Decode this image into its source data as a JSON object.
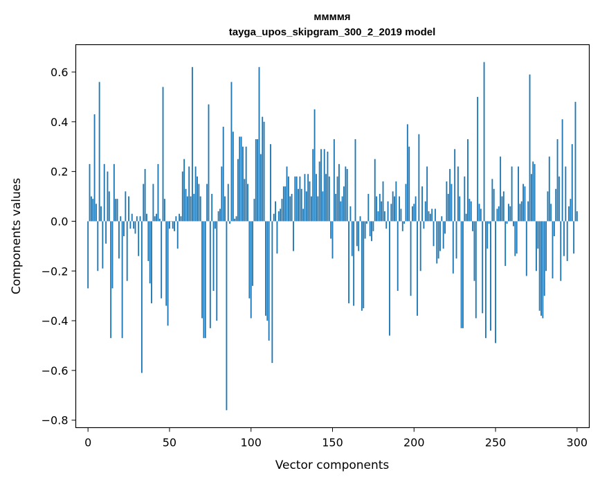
{
  "chart_data": {
    "type": "bar",
    "title": "ммммя",
    "subtitle": "tayga_upos_skipgram_300_2_2019 model",
    "xlabel": "Vector components",
    "ylabel": "Components values",
    "xlim": [
      -7.5,
      307.5
    ],
    "ylim": [
      -0.83,
      0.71
    ],
    "xticks": [
      0,
      50,
      100,
      150,
      200,
      250,
      300
    ],
    "yticks": [
      -0.8,
      -0.6,
      -0.4,
      -0.2,
      0.0,
      0.2,
      0.4,
      0.6
    ],
    "ytick_labels": [
      "−0.8",
      "−0.6",
      "−0.4",
      "−0.2",
      "0.0",
      "0.2",
      "0.4",
      "0.6"
    ],
    "bar_color": "#1f77b4",
    "x": "0..299",
    "values": [
      -0.27,
      0.23,
      0.1,
      0.09,
      0.43,
      0.07,
      -0.2,
      0.56,
      0.06,
      -0.19,
      0.23,
      -0.09,
      0.2,
      0.12,
      -0.47,
      -0.27,
      0.23,
      0.09,
      0.09,
      -0.15,
      0.02,
      -0.47,
      -0.06,
      0.12,
      -0.24,
      0.1,
      -0.03,
      0.03,
      -0.03,
      -0.05,
      0.02,
      -0.14,
      0.02,
      -0.61,
      0.15,
      0.21,
      0.03,
      -0.16,
      -0.25,
      -0.33,
      0.15,
      0.02,
      0.03,
      0.23,
      0.01,
      -0.31,
      0.54,
      0.09,
      -0.34,
      -0.42,
      -0.03,
      0.0,
      -0.03,
      -0.04,
      0.02,
      -0.11,
      0.03,
      0.02,
      0.2,
      0.25,
      0.13,
      0.1,
      0.22,
      0.1,
      0.62,
      0.11,
      0.22,
      0.18,
      0.15,
      0.1,
      -0.39,
      -0.47,
      -0.47,
      0.15,
      0.47,
      -0.43,
      0.11,
      -0.28,
      -0.03,
      -0.4,
      0.04,
      0.05,
      0.22,
      0.38,
      0.1,
      -0.76,
      0.15,
      -0.01,
      0.56,
      0.36,
      0.01,
      0.02,
      0.25,
      0.34,
      0.34,
      0.3,
      0.17,
      0.3,
      0.15,
      -0.31,
      -0.39,
      -0.26,
      0.09,
      0.33,
      0.33,
      0.62,
      0.27,
      0.42,
      0.4,
      -0.38,
      -0.4,
      -0.48,
      0.31,
      -0.57,
      0.03,
      0.08,
      -0.13,
      0.04,
      0.05,
      0.09,
      0.14,
      0.14,
      0.22,
      0.18,
      0.1,
      0.11,
      -0.12,
      0.18,
      0.18,
      0.13,
      0.18,
      0.13,
      0.05,
      0.19,
      0.12,
      0.19,
      0.16,
      0.1,
      0.29,
      0.45,
      0.19,
      0.1,
      0.24,
      0.29,
      0.12,
      0.29,
      0.19,
      0.28,
      0.18,
      -0.07,
      -0.15,
      0.33,
      0.11,
      0.18,
      0.23,
      0.08,
      0.1,
      0.14,
      0.22,
      0.21,
      -0.33,
      0.06,
      -0.14,
      -0.34,
      0.33,
      -0.1,
      -0.12,
      0.02,
      -0.36,
      -0.35,
      -0.07,
      -0.01,
      0.11,
      -0.06,
      -0.08,
      -0.04,
      0.25,
      0.1,
      0.04,
      0.11,
      0.08,
      0.16,
      0.04,
      -0.03,
      0.08,
      -0.46,
      0.07,
      0.12,
      0.1,
      0.16,
      -0.28,
      0.1,
      0.05,
      -0.04,
      -0.01,
      0.15,
      0.39,
      0.3,
      -0.3,
      0.06,
      0.07,
      0.1,
      -0.38,
      0.35,
      -0.2,
      0.14,
      -0.03,
      0.08,
      0.22,
      0.04,
      0.03,
      0.05,
      -0.1,
      0.05,
      -0.17,
      -0.15,
      -0.12,
      0.02,
      -0.11,
      -0.05,
      0.16,
      0.11,
      0.21,
      0.15,
      -0.21,
      0.29,
      -0.15,
      0.22,
      0.1,
      -0.43,
      -0.43,
      0.18,
      0.03,
      0.33,
      0.09,
      0.08,
      -0.04,
      -0.24,
      -0.39,
      0.5,
      0.07,
      0.05,
      -0.37,
      0.64,
      -0.47,
      -0.11,
      -0.01,
      -0.44,
      0.17,
      0.13,
      -0.49,
      0.05,
      0.06,
      0.26,
      0.1,
      0.12,
      -0.18,
      -0.01,
      0.07,
      0.06,
      0.22,
      -0.02,
      -0.14,
      -0.13,
      0.22,
      0.07,
      0.08,
      0.15,
      0.14,
      -0.22,
      0.08,
      0.59,
      0.19,
      0.24,
      0.23,
      -0.2,
      -0.11,
      -0.36,
      -0.38,
      -0.39,
      -0.3,
      -0.2,
      0.12,
      0.26,
      0.07,
      -0.23,
      -0.06,
      0.13,
      0.33,
      0.18,
      -0.24,
      0.41,
      -0.14,
      0.22,
      -0.16,
      0.06,
      0.09,
      0.31,
      -0.13,
      0.48,
      0.04
    ]
  }
}
